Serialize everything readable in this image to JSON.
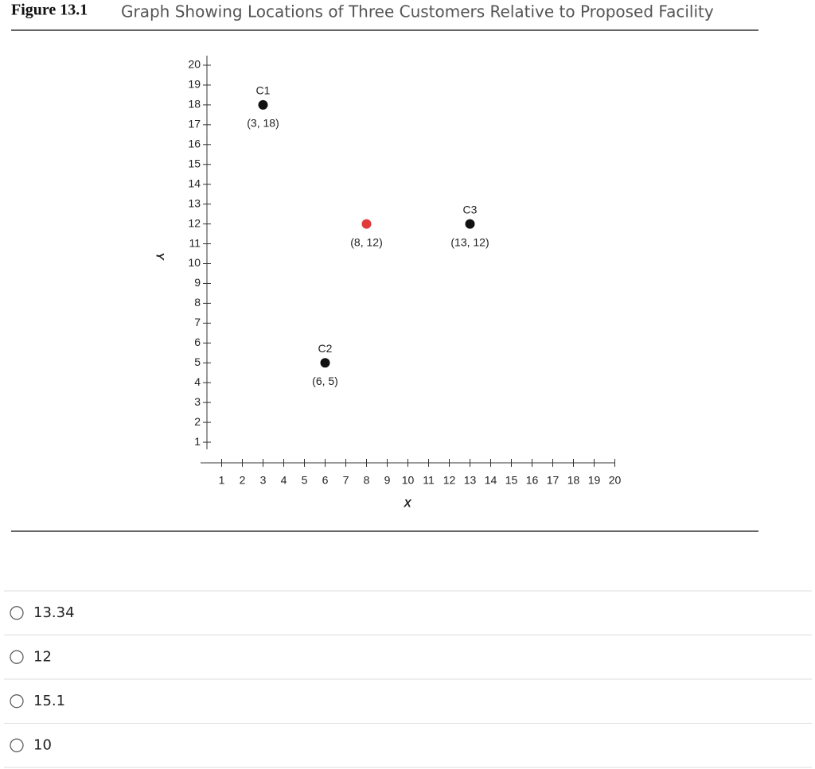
{
  "figure": {
    "label": "Figure 13.1",
    "title": "Graph Showing Locations of Three Customers Relative to Proposed Facility"
  },
  "chart_data": {
    "type": "scatter",
    "x_label": "X",
    "y_label": "Y",
    "xlim": [
      0,
      20
    ],
    "ylim": [
      0,
      20
    ],
    "xticks": [
      1,
      2,
      3,
      4,
      5,
      6,
      7,
      8,
      9,
      10,
      11,
      12,
      13,
      14,
      15,
      16,
      17,
      18,
      19,
      20
    ],
    "yticks": [
      1,
      2,
      3,
      4,
      5,
      6,
      7,
      8,
      9,
      10,
      11,
      12,
      13,
      14,
      15,
      16,
      17,
      18,
      19,
      20
    ],
    "points": [
      {
        "label": "C1",
        "x": 3,
        "y": 18,
        "value_label": "(3, 18)",
        "color": "#111111"
      },
      {
        "x": 8,
        "y": 12,
        "value_label": "(8, 12)",
        "color": "#e03a3a"
      },
      {
        "label": "C3",
        "x": 13,
        "y": 12,
        "value_label": "(13, 12)",
        "color": "#111111"
      },
      {
        "label": "C2",
        "x": 6,
        "y": 5,
        "value_label": "(6, 5)",
        "color": "#111111"
      }
    ]
  },
  "options": [
    "13.34",
    "12",
    "15.1",
    "10"
  ]
}
